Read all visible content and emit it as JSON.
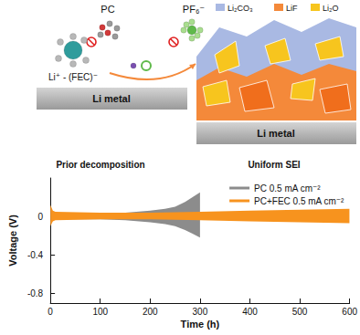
{
  "diagram": {
    "left": {
      "molecules": [
        "PC",
        "PF₆⁻"
      ],
      "cation": "Li⁺ - (FEC)⁻",
      "substrate": "Li metal",
      "caption": "Prior decomposition"
    },
    "right": {
      "legend": [
        {
          "label": "Li₂CO₃",
          "color": "#a9b9e3"
        },
        {
          "label": "LiF",
          "color": "#f4893a"
        },
        {
          "label": "Li₂O",
          "color": "#f7c51e"
        }
      ],
      "substrate": "Li metal",
      "caption": "Uniform SEI"
    }
  },
  "chart_data": {
    "type": "area",
    "x_label": "Time (h)",
    "y_label": "Voltage (V)",
    "xlim": [
      0,
      600
    ],
    "xticks": [
      0,
      100,
      200,
      300,
      400,
      500,
      600
    ],
    "ylim": [
      -0.9,
      0.4
    ],
    "yticks": [
      -0.8,
      -0.4,
      0
    ],
    "grid": false,
    "legend": "upper right",
    "series": [
      {
        "name": "PC 0.5 mA cm⁻²",
        "color": "#8c8c8c",
        "x": [
          0,
          5,
          10,
          50,
          100,
          150,
          200,
          230,
          250,
          270,
          285,
          300
        ],
        "values": [
          0.1,
          0.04,
          0.03,
          0.03,
          0.03,
          0.04,
          0.06,
          0.08,
          0.1,
          0.15,
          0.2,
          0.25
        ],
        "lower": [
          -0.08,
          -0.04,
          -0.03,
          -0.03,
          -0.03,
          -0.04,
          -0.06,
          -0.08,
          -0.1,
          -0.14,
          -0.18,
          -0.22
        ]
      },
      {
        "name": "PC+FEC 0.5 mA cm⁻²",
        "color": "#f7931e",
        "x": [
          0,
          5,
          10,
          100,
          200,
          300,
          400,
          500,
          600
        ],
        "values": [
          0.12,
          0.06,
          0.05,
          0.04,
          0.04,
          0.05,
          0.06,
          0.07,
          0.08
        ],
        "lower": [
          -0.1,
          -0.05,
          -0.04,
          -0.03,
          -0.03,
          -0.04,
          -0.05,
          -0.06,
          -0.07
        ]
      }
    ]
  }
}
